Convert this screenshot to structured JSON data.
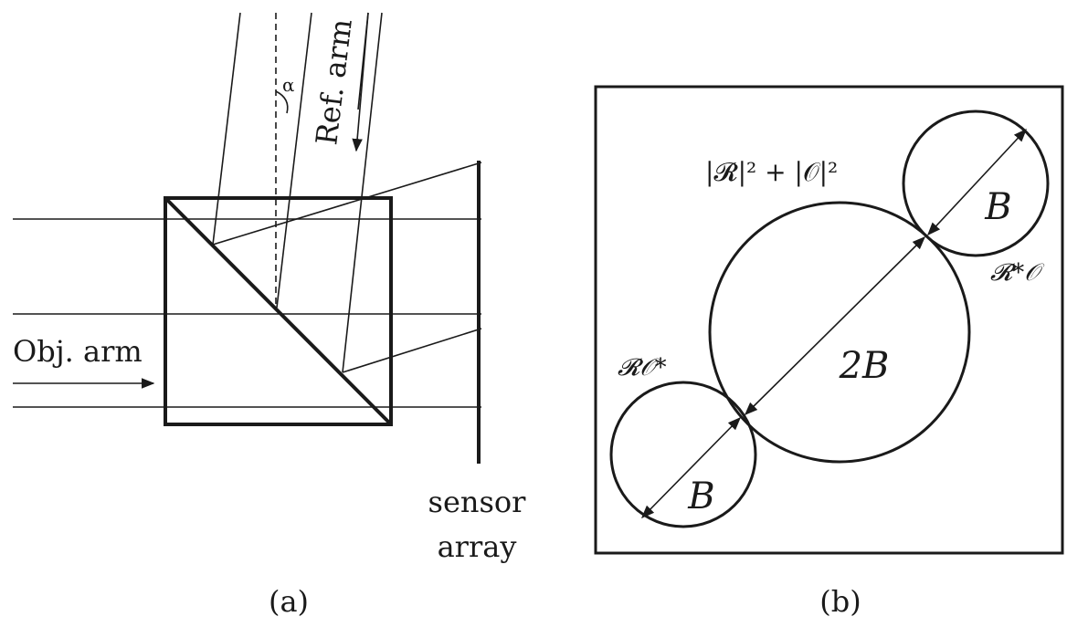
{
  "panel_a": {
    "ref_arm_label": "Ref. arm",
    "alpha_label": "α",
    "obj_arm_label": "Obj. arm",
    "sensor_label_line1": "sensor",
    "sensor_label_line2": "array",
    "caption": "(a)"
  },
  "panel_b": {
    "dc_term_label": "|𝓡|² + |𝒪|²",
    "top_twin_label": "𝓡*𝒪",
    "bottom_twin_label": "𝓡𝒪*",
    "center_bandwidth_label": "2B",
    "top_bandwidth_label": "B",
    "bottom_bandwidth_label": "B",
    "caption": "(b)"
  }
}
